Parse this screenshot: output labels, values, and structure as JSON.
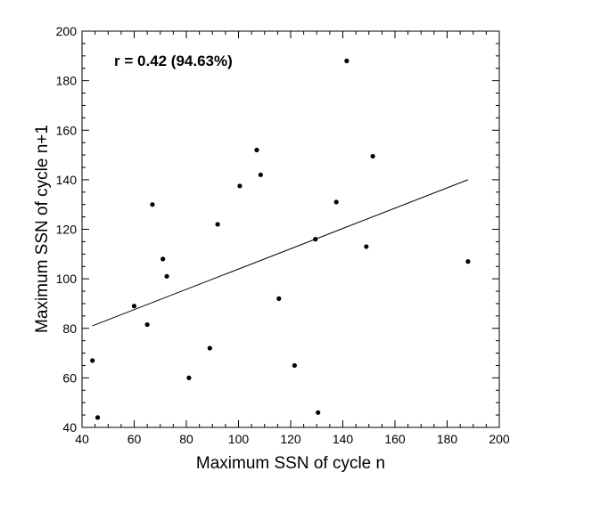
{
  "chart_data": {
    "type": "scatter",
    "title": "",
    "xlabel": "Maximum SSN of cycle n",
    "ylabel": "Maximum SSN of cycle n+1",
    "xlim": [
      40,
      200
    ],
    "ylim": [
      40,
      200
    ],
    "x_ticks": [
      40,
      60,
      80,
      100,
      120,
      140,
      160,
      180,
      200
    ],
    "y_ticks": [
      40,
      60,
      80,
      100,
      120,
      140,
      160,
      180,
      200
    ],
    "x_tick_labels": [
      "40",
      "60",
      "80",
      "100",
      "120",
      "140",
      "160",
      "180",
      "200"
    ],
    "y_tick_labels": [
      "40",
      "60",
      "80",
      "100",
      "120",
      "140",
      "160",
      "180",
      "200"
    ],
    "annotation": "r = 0.42 (94.63%)",
    "grid": false,
    "series": [
      {
        "name": "cycles",
        "type": "scatter",
        "points": [
          {
            "x": 44,
            "y": 67
          },
          {
            "x": 46,
            "y": 44
          },
          {
            "x": 60,
            "y": 89
          },
          {
            "x": 65,
            "y": 81.5
          },
          {
            "x": 67,
            "y": 130
          },
          {
            "x": 71,
            "y": 108
          },
          {
            "x": 72.5,
            "y": 101
          },
          {
            "x": 81,
            "y": 60
          },
          {
            "x": 89,
            "y": 72
          },
          {
            "x": 92,
            "y": 122
          },
          {
            "x": 100.5,
            "y": 137.5
          },
          {
            "x": 107,
            "y": 152
          },
          {
            "x": 108.5,
            "y": 142
          },
          {
            "x": 115.5,
            "y": 92
          },
          {
            "x": 121.5,
            "y": 65
          },
          {
            "x": 129.5,
            "y": 116
          },
          {
            "x": 130.5,
            "y": 46
          },
          {
            "x": 137.5,
            "y": 131
          },
          {
            "x": 141.5,
            "y": 188
          },
          {
            "x": 149,
            "y": 113
          },
          {
            "x": 151.5,
            "y": 149.5
          },
          {
            "x": 188,
            "y": 107
          }
        ]
      },
      {
        "name": "regression",
        "type": "line",
        "points": [
          {
            "x": 44,
            "y": 81
          },
          {
            "x": 188,
            "y": 140
          }
        ]
      }
    ]
  }
}
